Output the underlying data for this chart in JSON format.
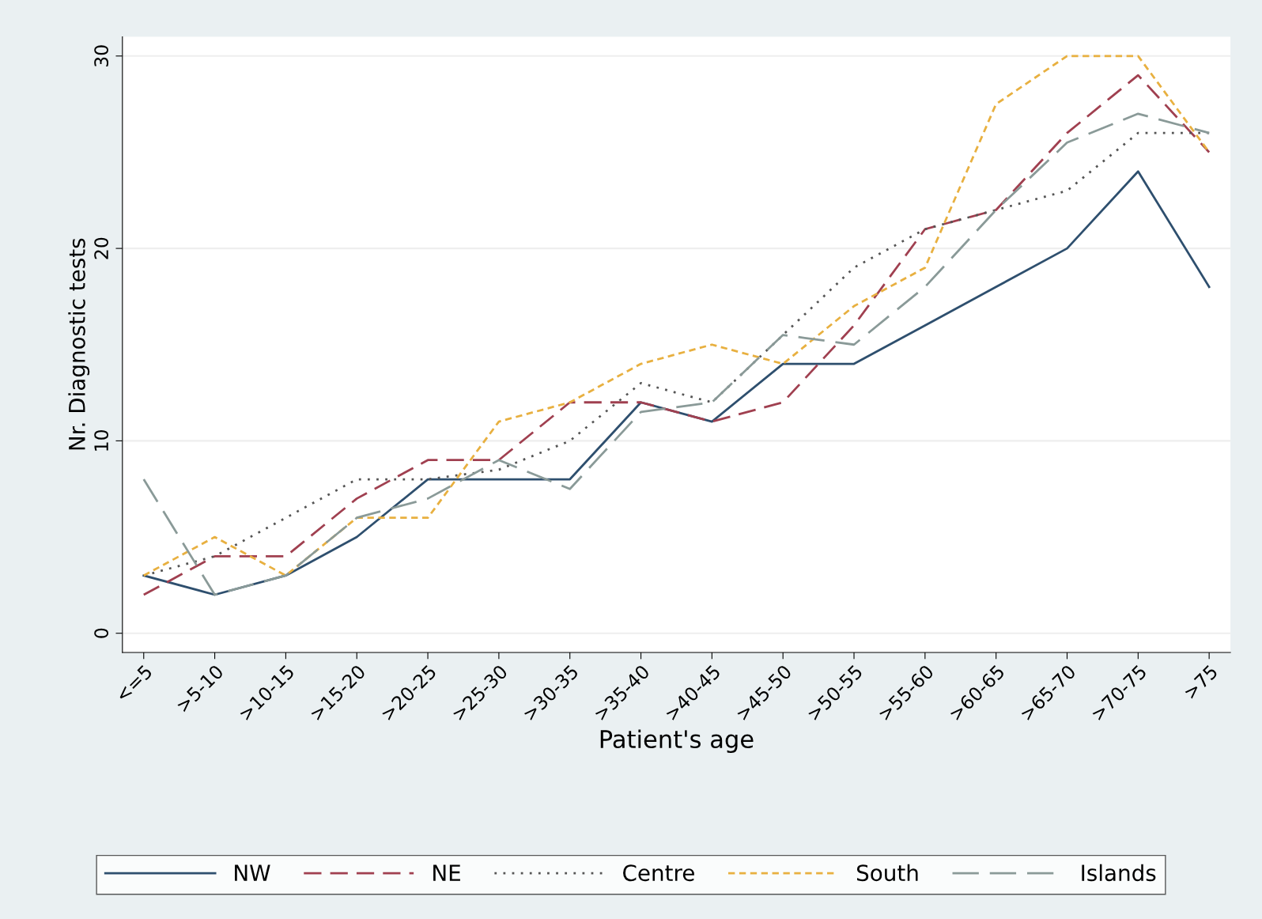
{
  "chart_data": {
    "type": "line",
    "xlabel": "Patient's age",
    "ylabel": "Nr. Diagnostic tests",
    "categories": [
      "<=5",
      ">5-10",
      ">10-15",
      ">15-20",
      ">20-25",
      ">25-30",
      ">30-35",
      ">35-40",
      ">40-45",
      ">45-50",
      ">50-55",
      ">55-60",
      ">60-65",
      ">65-70",
      ">70-75",
      ">75"
    ],
    "ylim": [
      -1,
      31
    ],
    "yticks": [
      0,
      10,
      20,
      30
    ],
    "grid": "y",
    "legend": "bottom",
    "series": [
      {
        "name": "NW",
        "color": "#2e4f6e",
        "line_style": "solid",
        "values": [
          3,
          2,
          3,
          5,
          8,
          8,
          8,
          12,
          11,
          14,
          14,
          16,
          18,
          20,
          24,
          18
        ]
      },
      {
        "name": "NE",
        "color": "#a04050",
        "line_style": "dashed",
        "values": [
          2,
          4,
          4,
          7,
          9,
          9,
          12,
          12,
          11,
          12,
          16,
          21,
          22,
          26,
          29,
          25
        ]
      },
      {
        "name": "Centre",
        "color": "#555555",
        "line_style": "dotted",
        "values": [
          3,
          4,
          6,
          8,
          8,
          8.5,
          10,
          13,
          12,
          15.5,
          19,
          21,
          22,
          23,
          26,
          26
        ]
      },
      {
        "name": "South",
        "color": "#e8b040",
        "line_style": "shortdash",
        "values": [
          3,
          5,
          3,
          6,
          6,
          11,
          12,
          14,
          15,
          14,
          17,
          19,
          27.5,
          30,
          30,
          25
        ]
      },
      {
        "name": "Islands",
        "color": "#8a9a98",
        "line_style": "longdash",
        "values": [
          8,
          2,
          3,
          6,
          7,
          9,
          7.5,
          11.5,
          12,
          15.5,
          15,
          18,
          22,
          25.5,
          27,
          26
        ]
      }
    ]
  }
}
